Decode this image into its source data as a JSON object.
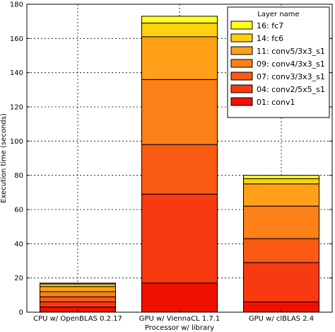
{
  "chart_data": {
    "type": "bar",
    "stacked": true,
    "xlabel": "Processor w/ library",
    "ylabel": "Execution time (seconds)",
    "ylim": [
      0,
      180
    ],
    "yticks": [
      0,
      20,
      40,
      60,
      80,
      100,
      120,
      140,
      160,
      180
    ],
    "grid": true,
    "legend_title": "Layer name",
    "legend_position": "top-right",
    "categories": [
      "CPU w/ OpenBLAS 0.2.17",
      "GPU w/ ViennaCL 1.7.1",
      "GPU w/ clBLAS 2.4"
    ],
    "series": [
      {
        "name": "01: conv1",
        "color": "#ee1100",
        "values": [
          3,
          17,
          6
        ]
      },
      {
        "name": "04: conv2/5x5_s1",
        "color": "#f73a10",
        "values": [
          3,
          52,
          23
        ]
      },
      {
        "name": "07: conv3/3x3_s1",
        "color": "#fa5a14",
        "values": [
          3,
          29,
          14
        ]
      },
      {
        "name": "09: conv4/3x3_s1",
        "color": "#fd8018",
        "values": [
          3,
          38,
          19
        ]
      },
      {
        "name": "11: conv5/3x3_s1",
        "color": "#ffa018",
        "values": [
          3,
          25,
          13
        ]
      },
      {
        "name": "14: fc6",
        "color": "#ffd010",
        "values": [
          1.5,
          8,
          3
        ]
      },
      {
        "name": "16: fc7",
        "color": "#ffff20",
        "values": [
          0.5,
          4,
          2
        ]
      }
    ]
  }
}
